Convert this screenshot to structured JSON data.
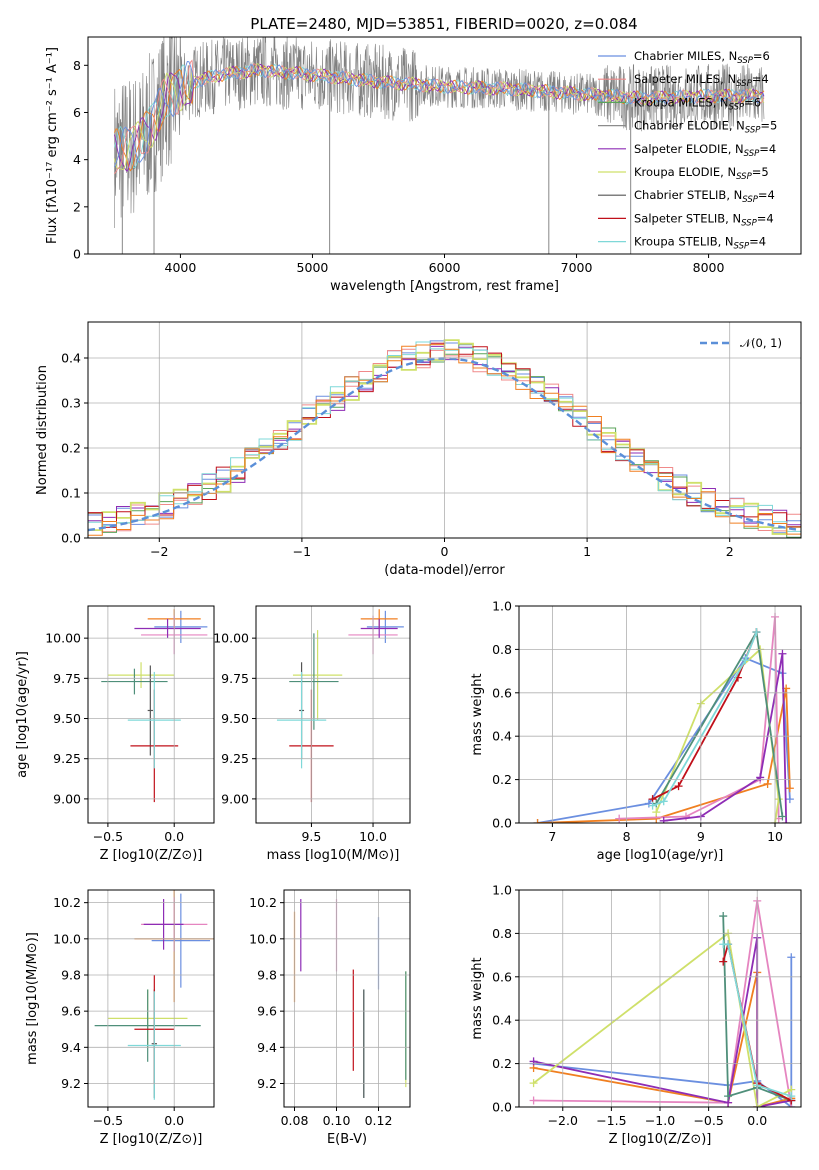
{
  "figure_title": "PLATE=2480, MJD=53851, FIBERID=0020, z=0.084",
  "colors": {
    "Chabrier MILES": "#6b8fe0",
    "Salpeter MILES": "#f08a8a",
    "Kroupa MILES": "#5aa35a",
    "Chabrier ELODIE": "#8c8c8c",
    "Salpeter ELODIE": "#8e2db5",
    "Kroupa ELODIE": "#cfe06a",
    "Chabrier STELIB": "#555555",
    "Salpeter STELIB": "#c0101a",
    "Kroupa STELIB": "#7fd8d8",
    "orange": "#f07f20",
    "pink": "#e585c0",
    "teal": "#4f8f7a",
    "normal": "#5b8fd8"
  },
  "chart_data": [
    {
      "id": "spectrum",
      "type": "line",
      "title": "PLATE=2480, MJD=53851, FIBERID=0020, z=0.084",
      "xlabel": "wavelength [Angstrom, rest frame]",
      "ylabel": "Flux [fλ10⁻¹⁷ erg cm⁻² s⁻¹ A⁻¹]",
      "xlim": [
        3300,
        8700
      ],
      "ylim": [
        0,
        9.2
      ],
      "xticks": [
        4000,
        5000,
        6000,
        7000,
        8000
      ],
      "yticks": [
        0,
        2,
        4,
        6,
        8
      ],
      "legend_position": "right",
      "legend": [
        "Chabrier MILES, N_SSP=6",
        "Salpeter MILES, N_SSP=4",
        "Kroupa MILES, N_SSP=6",
        "Chabrier ELODIE, N_SSP=5",
        "Salpeter ELODIE, N_SSP=4",
        "Kroupa ELODIE, N_SSP=5",
        "Chabrier STELIB, N_SSP=4",
        "Salpeter STELIB, N_SSP=4",
        "Kroupa STELIB, N_SSP=4"
      ],
      "continuum": {
        "x": [
          3500,
          3700,
          3900,
          4100,
          4300,
          4600,
          5000,
          5500,
          6000,
          6500,
          7000,
          7500,
          8000,
          8400
        ],
        "y": [
          4.3,
          4.7,
          6.7,
          7.3,
          7.6,
          7.8,
          7.6,
          7.3,
          7.1,
          7.0,
          6.8,
          6.6,
          6.7,
          6.7
        ]
      }
    },
    {
      "id": "residual-hist",
      "type": "line",
      "xlabel": "(data-model)/error",
      "ylabel": "Normed distribution",
      "xlim": [
        -2.5,
        2.5
      ],
      "ylim": [
        0,
        0.48
      ],
      "xticks": [
        -2,
        -1,
        0,
        1,
        2
      ],
      "yticks": [
        0.0,
        0.1,
        0.2,
        0.3,
        0.4
      ],
      "legend": [
        "𝒩(0, 1)"
      ],
      "series": [
        {
          "name": "𝒩(0, 1)",
          "function": "gaussian",
          "mean": 0,
          "sigma": 1
        }
      ]
    },
    {
      "id": "age-vs-Z",
      "type": "scatter",
      "xlabel": "Z [log10(Z/Z⊙)]",
      "ylabel": "age  [log10(age/yr)]",
      "xlim": [
        -0.65,
        0.3
      ],
      "ylim": [
        8.85,
        10.2
      ],
      "xticks": [
        -0.5,
        0.0
      ],
      "yticks": [
        9.0,
        9.25,
        9.5,
        9.75,
        10.0
      ],
      "points": [
        {
          "x": 0.05,
          "y": 10.07,
          "xerr": 0.2,
          "yerr": 0.1,
          "c": "Chabrier MILES"
        },
        {
          "x": 0.0,
          "y": 10.12,
          "xerr": 0.2,
          "yerr": 0.06,
          "c": "orange"
        },
        {
          "x": 0.0,
          "y": 10.02,
          "xerr": 0.25,
          "yerr": 0.12,
          "c": "pink"
        },
        {
          "x": -0.05,
          "y": 10.06,
          "xerr": 0.25,
          "yerr": 0.06,
          "c": "Salpeter ELODIE"
        },
        {
          "x": -0.25,
          "y": 9.77,
          "xerr": 0.25,
          "yerr": 0.08,
          "c": "Kroupa ELODIE"
        },
        {
          "x": -0.3,
          "y": 9.73,
          "xerr": 0.25,
          "yerr": 0.08,
          "c": "teal"
        },
        {
          "x": -0.18,
          "y": 9.55,
          "xerr": 0.02,
          "yerr": 0.28,
          "c": "Chabrier STELIB"
        },
        {
          "x": -0.15,
          "y": 9.33,
          "xerr": 0.18,
          "yerr": 0.35,
          "c": "Salpeter STELIB"
        },
        {
          "x": -0.15,
          "y": 9.49,
          "xerr": 0.2,
          "yerr": 0.3,
          "c": "Kroupa STELIB"
        }
      ]
    },
    {
      "id": "age-vs-mass",
      "type": "scatter",
      "xlabel": "mass [log10(M/M⊙)]",
      "ylabel": "",
      "xlim": [
        9.05,
        10.3
      ],
      "ylim": [
        8.85,
        10.2
      ],
      "xticks": [
        9.5,
        10.0
      ],
      "yticks": [
        9.0,
        9.25,
        9.5,
        9.75,
        10.0
      ],
      "points": [
        {
          "x": 10.1,
          "y": 10.07,
          "xerr": 0.15,
          "yerr": 0.1,
          "c": "Chabrier MILES"
        },
        {
          "x": 10.05,
          "y": 10.12,
          "xerr": 0.15,
          "yerr": 0.06,
          "c": "orange"
        },
        {
          "x": 10.0,
          "y": 10.02,
          "xerr": 0.2,
          "yerr": 0.12,
          "c": "pink"
        },
        {
          "x": 10.05,
          "y": 10.06,
          "xerr": 0.15,
          "yerr": 0.06,
          "c": "Salpeter ELODIE"
        },
        {
          "x": 9.55,
          "y": 9.77,
          "xerr": 0.2,
          "yerr": 0.28,
          "c": "Kroupa ELODIE"
        },
        {
          "x": 9.52,
          "y": 9.73,
          "xerr": 0.2,
          "yerr": 0.3,
          "c": "teal"
        },
        {
          "x": 9.42,
          "y": 9.55,
          "xerr": 0.02,
          "yerr": 0.3,
          "c": "Chabrier STELIB"
        },
        {
          "x": 9.5,
          "y": 9.33,
          "xerr": 0.18,
          "yerr": 0.35,
          "c": "Salpeter STELIB"
        },
        {
          "x": 9.42,
          "y": 9.49,
          "xerr": 0.2,
          "yerr": 0.3,
          "c": "Kroupa STELIB"
        }
      ]
    },
    {
      "id": "weight-vs-age",
      "type": "line",
      "xlabel": "age  [log10(age/yr)]",
      "ylabel": "mass weight",
      "xlim": [
        6.55,
        10.35
      ],
      "ylim": [
        0,
        1.0
      ],
      "xticks": [
        7,
        8,
        9,
        10
      ],
      "yticks": [
        0.0,
        0.2,
        0.4,
        0.6,
        0.8,
        1.0
      ],
      "series": [
        {
          "c": "Chabrier MILES",
          "x": [
            6.8,
            8.3,
            9.6,
            10.1,
            10.2
          ],
          "y": [
            0.0,
            0.09,
            0.76,
            0.69,
            0.11
          ]
        },
        {
          "c": "orange",
          "x": [
            6.8,
            8.4,
            9.9,
            10.15,
            10.2
          ],
          "y": [
            0.0,
            0.02,
            0.18,
            0.62,
            0.16
          ]
        },
        {
          "c": "pink",
          "x": [
            7.9,
            8.8,
            9.8,
            10.0,
            10.05
          ],
          "y": [
            0.02,
            0.03,
            0.2,
            0.95,
            0.02
          ]
        },
        {
          "c": "Salpeter ELODIE",
          "x": [
            8.5,
            9.0,
            9.8,
            10.1,
            10.15
          ],
          "y": [
            0.01,
            0.03,
            0.21,
            0.78,
            0.0
          ]
        },
        {
          "c": "Kroupa ELODIE",
          "x": [
            8.4,
            9.0,
            9.8,
            10.05,
            10.0
          ],
          "y": [
            0.05,
            0.55,
            0.8,
            0.11,
            0.0
          ]
        },
        {
          "c": "teal",
          "x": [
            8.4,
            9.75,
            10.1
          ],
          "y": [
            0.09,
            0.88,
            0.03
          ]
        },
        {
          "c": "Salpeter STELIB",
          "x": [
            8.35,
            8.7,
            9.5,
            9.75
          ],
          "y": [
            0.11,
            0.17,
            0.67,
            0.88
          ]
        },
        {
          "c": "Kroupa STELIB",
          "x": [
            8.35,
            8.5,
            9.6,
            9.75
          ],
          "y": [
            0.08,
            0.1,
            0.75,
            0.88
          ]
        }
      ]
    },
    {
      "id": "mass-vs-Z",
      "type": "scatter",
      "xlabel": "Z [log10(Z/Z⊙)]",
      "ylabel": "mass [log10(M/M⊙)]",
      "xlim": [
        -0.65,
        0.3
      ],
      "ylim": [
        9.07,
        10.27
      ],
      "xticks": [
        -0.5,
        0.0
      ],
      "yticks": [
        9.2,
        9.4,
        9.6,
        9.8,
        10.0,
        10.2
      ],
      "points": [
        {
          "x": 0.05,
          "y": 9.99,
          "xerr": 0.22,
          "yerr": 0.26,
          "c": "Chabrier MILES"
        },
        {
          "x": 0.0,
          "y": 10.0,
          "xerr": 0.3,
          "yerr": 0.35,
          "c": "orange"
        },
        {
          "x": 0.0,
          "y": 10.08,
          "xerr": 0.25,
          "yerr": 0.15,
          "c": "pink"
        },
        {
          "x": -0.08,
          "y": 10.08,
          "xerr": 0.15,
          "yerr": 0.14,
          "c": "Salpeter ELODIE"
        },
        {
          "x": -0.2,
          "y": 9.56,
          "xerr": 0.3,
          "yerr": 0.16,
          "c": "Kroupa ELODIE"
        },
        {
          "x": -0.2,
          "y": 9.52,
          "xerr": 0.4,
          "yerr": 0.2,
          "c": "teal"
        },
        {
          "x": -0.15,
          "y": 9.42,
          "xerr": 0.02,
          "yerr": 0.3,
          "c": "Chabrier STELIB"
        },
        {
          "x": -0.15,
          "y": 9.5,
          "xerr": 0.15,
          "yerr": 0.3,
          "c": "Salpeter STELIB"
        },
        {
          "x": -0.15,
          "y": 9.41,
          "xerr": 0.2,
          "yerr": 0.3,
          "c": "Kroupa STELIB"
        }
      ]
    },
    {
      "id": "mass-vs-EBV",
      "type": "scatter",
      "xlabel": "E(B-V)",
      "ylabel": "",
      "xlim": [
        0.075,
        0.135
      ],
      "ylim": [
        9.07,
        10.27
      ],
      "xticks": [
        0.08,
        0.1,
        0.12
      ],
      "yticks": [
        9.2,
        9.4,
        9.6,
        9.8,
        10.0,
        10.2
      ],
      "points": [
        {
          "x": 0.08,
          "y": 9.9,
          "yerr": 0.25,
          "c": "orange"
        },
        {
          "x": 0.083,
          "y": 10.02,
          "yerr": 0.2,
          "c": "Salpeter ELODIE"
        },
        {
          "x": 0.1,
          "y": 10.02,
          "yerr": 0.2,
          "c": "pink"
        },
        {
          "x": 0.108,
          "y": 9.55,
          "yerr": 0.28,
          "c": "Salpeter STELIB"
        },
        {
          "x": 0.113,
          "y": 9.42,
          "yerr": 0.3,
          "c": "Kroupa STELIB"
        },
        {
          "x": 0.113,
          "y": 9.42,
          "yerr": 0.3,
          "c": "Chabrier STELIB"
        },
        {
          "x": 0.12,
          "y": 9.92,
          "yerr": 0.2,
          "c": "Chabrier MILES"
        },
        {
          "x": 0.133,
          "y": 9.5,
          "yerr": 0.32,
          "c": "Kroupa ELODIE"
        },
        {
          "x": 0.133,
          "y": 9.52,
          "yerr": 0.3,
          "c": "teal"
        }
      ]
    },
    {
      "id": "weight-vs-Z",
      "type": "line",
      "xlabel": "Z [log10(Z/Z⊙)]",
      "ylabel": "mass weight",
      "xlim": [
        -2.45,
        0.45
      ],
      "ylim": [
        0,
        1.0
      ],
      "xticks": [
        -2.0,
        -1.5,
        -1.0,
        -0.5,
        0.0
      ],
      "yticks": [
        0.0,
        0.2,
        0.4,
        0.6,
        0.8,
        1.0
      ],
      "series": [
        {
          "c": "Chabrier MILES",
          "x": [
            -2.3,
            -0.3,
            0.0,
            0.35,
            0.35
          ],
          "y": [
            0.2,
            0.1,
            0.12,
            0.0,
            0.69
          ]
        },
        {
          "c": "orange",
          "x": [
            -2.3,
            -0.3,
            0.0,
            0.0,
            0.35
          ],
          "y": [
            0.18,
            0.02,
            0.62,
            0.0,
            0.04
          ]
        },
        {
          "c": "pink",
          "x": [
            -2.3,
            -0.3,
            0.0,
            0.35
          ],
          "y": [
            0.03,
            0.02,
            0.95,
            0.0
          ]
        },
        {
          "c": "Salpeter ELODIE",
          "x": [
            -2.3,
            -0.3,
            0.0,
            0.0,
            0.35
          ],
          "y": [
            0.21,
            0.02,
            0.78,
            0.0,
            0.03
          ]
        },
        {
          "c": "Kroupa ELODIE",
          "x": [
            -2.3,
            -0.3,
            0.0,
            0.35
          ],
          "y": [
            0.11,
            0.8,
            0.0,
            0.08
          ]
        },
        {
          "c": "teal",
          "x": [
            -0.35,
            -0.3,
            0.0,
            0.35
          ],
          "y": [
            0.88,
            0.05,
            0.09,
            0.03
          ]
        },
        {
          "c": "Salpeter STELIB",
          "x": [
            -0.35,
            -0.3,
            0.0,
            0.35
          ],
          "y": [
            0.67,
            0.75,
            0.11,
            0.03
          ]
        },
        {
          "c": "Kroupa STELIB",
          "x": [
            -0.35,
            -0.3,
            0.0,
            0.35
          ],
          "y": [
            0.75,
            0.75,
            0.1,
            0.05
          ]
        }
      ]
    }
  ]
}
